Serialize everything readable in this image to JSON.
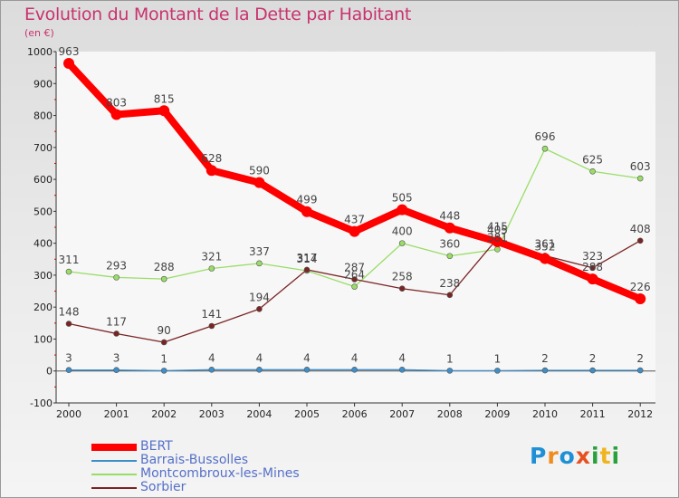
{
  "title": "Evolution du Montant de la Dette par Habitant",
  "subtitle": "(en €)",
  "brand": {
    "text": "Proxiti",
    "letters": [
      {
        "ch": "P",
        "color": "#1e90d6"
      },
      {
        "ch": "r",
        "color": "#f08c1e"
      },
      {
        "ch": "o",
        "color": "#1e90d6"
      },
      {
        "ch": "x",
        "color": "#e8501e"
      },
      {
        "ch": "i",
        "color": "#28a03c"
      },
      {
        "ch": "t",
        "color": "#f0b41e"
      },
      {
        "ch": "i",
        "color": "#28a03c"
      }
    ]
  },
  "chart_data": {
    "type": "line",
    "title": "Evolution du Montant de la Dette par Habitant",
    "ylabel": "(en €)",
    "xlabel": "",
    "x": [
      "2000",
      "2001",
      "2002",
      "2003",
      "2004",
      "2005",
      "2006",
      "2007",
      "2008",
      "2009",
      "2010",
      "2011",
      "2012"
    ],
    "ylim": [
      -100,
      1000
    ],
    "yticks": [
      "-100",
      "0",
      "100",
      "200",
      "300",
      "400",
      "500",
      "600",
      "700",
      "800",
      "900",
      "1000"
    ],
    "ytick_values": [
      -100,
      0,
      100,
      200,
      300,
      400,
      500,
      600,
      700,
      800,
      900,
      1000
    ],
    "grid": false,
    "legend_position": "bottom-left",
    "series": [
      {
        "name": "BERT",
        "color": "#ff0000",
        "emphasis": true,
        "values": [
          963,
          803,
          815,
          628,
          590,
          499,
          437,
          505,
          448,
          405,
          352,
          288,
          226
        ],
        "labels": [
          "963",
          "803",
          "815",
          "628",
          "590",
          "499",
          "437",
          "505",
          "448",
          "405",
          "352",
          "288",
          "226"
        ]
      },
      {
        "name": "Barrais-Bussolles",
        "color": "#3d8ec9",
        "emphasis": false,
        "values": [
          3,
          3,
          1,
          4,
          4,
          4,
          4,
          4,
          1,
          1,
          2,
          2,
          2
        ],
        "labels": [
          "3",
          "3",
          "1",
          "4",
          "4",
          "4",
          "4",
          "4",
          "1",
          "1",
          "2",
          "2",
          "2"
        ]
      },
      {
        "name": "Montcombroux-les-Mines",
        "color": "#99dd66",
        "emphasis": false,
        "values": [
          311,
          293,
          288,
          321,
          337,
          314,
          264,
          400,
          360,
          381,
          696,
          625,
          603
        ],
        "labels": [
          "311",
          "293",
          "288",
          "321",
          "337",
          "314",
          "264",
          "400",
          "360",
          "381",
          "696",
          "625",
          "603"
        ]
      },
      {
        "name": "Sorbier",
        "color": "#7a2424",
        "emphasis": false,
        "values": [
          148,
          117,
          90,
          141,
          194,
          317,
          287,
          258,
          238,
          415,
          361,
          323,
          408
        ],
        "labels": [
          "148",
          "117",
          "90",
          "141",
          "194",
          "317",
          "287",
          "258",
          "238",
          "415",
          "361",
          "323",
          "408"
        ]
      }
    ]
  }
}
